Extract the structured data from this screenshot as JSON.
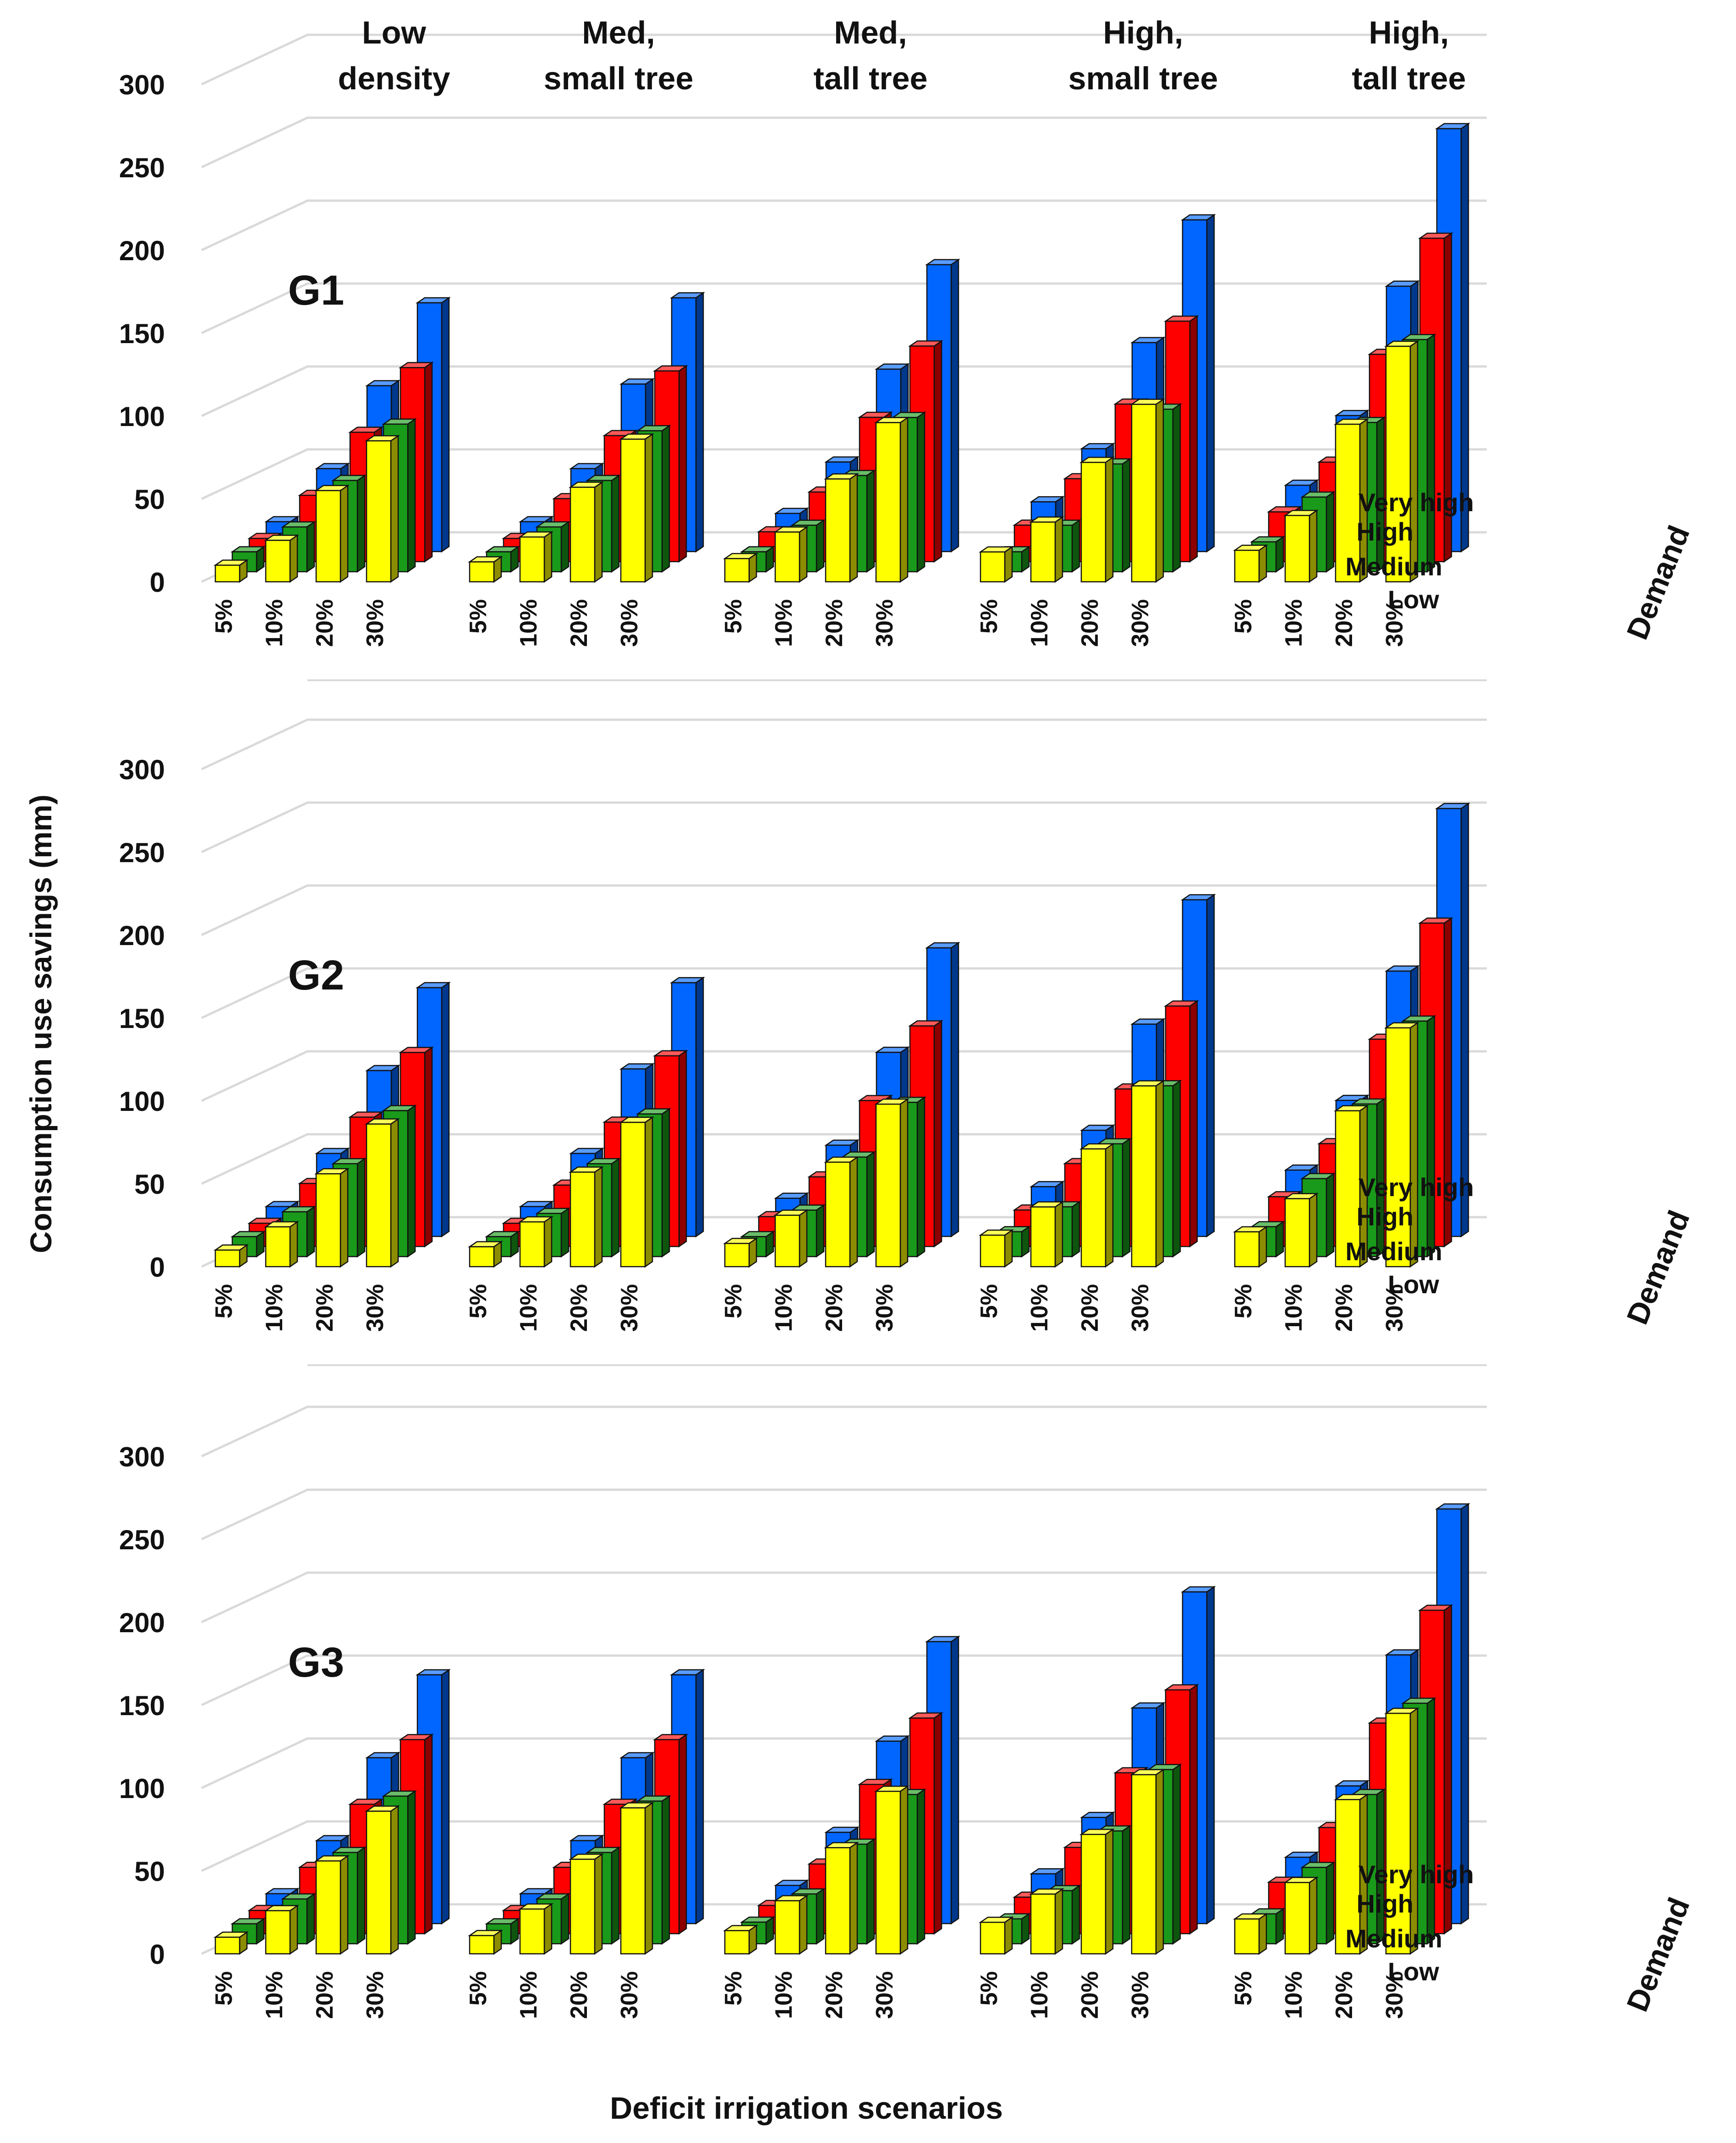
{
  "figure": {
    "ylabel": "Consumption use savings (mm)",
    "xlabel": "Deficit irrigation scenarios",
    "depth_axis_title": "Demand"
  },
  "colors": {
    "Low": "#ffff00",
    "Medium": "#1a9a1a",
    "High": "#ff0000",
    "Very high": "#0066ff",
    "grid": "#d9d9d9",
    "edge": "#111111"
  },
  "chart_data": {
    "type": "bar",
    "style": "3d-clustered",
    "ylim": [
      0,
      300
    ],
    "yticks": [
      0,
      50,
      100,
      150,
      200,
      250,
      300
    ],
    "scenarios": [
      "5%",
      "10%",
      "20%",
      "30%"
    ],
    "demand_levels": [
      "Low",
      "Medium",
      "High",
      "Very high"
    ],
    "densities": [
      {
        "line1": "Low",
        "line2": "density"
      },
      {
        "line1": "Med,",
        "line2": "small tree"
      },
      {
        "line1": "Med,",
        "line2": "tall tree"
      },
      {
        "line1": "High,",
        "line2": "small tree"
      },
      {
        "line1": "High,",
        "line2": "tall tree"
      }
    ],
    "note": "values[density][demand][scenario] in mm; demand order Low, Medium, High, Very high; scenario order 5%, 10%, 20%, 30%",
    "panels": [
      {
        "name": "G1",
        "values": [
          [
            [
              10,
              25,
              55,
              85
            ],
            [
              12,
              27,
              55,
              89
            ],
            [
              14,
              40,
              78,
              117
            ],
            [
              18,
              50,
              100,
              150
            ]
          ],
          [
            [
              12,
              27,
              57,
              86
            ],
            [
              12,
              27,
              55,
              85
            ],
            [
              14,
              38,
              76,
              115
            ],
            [
              18,
              50,
              101,
              153
            ]
          ],
          [
            [
              14,
              30,
              62,
              96
            ],
            [
              12,
              28,
              58,
              93
            ],
            [
              18,
              42,
              87,
              130
            ],
            [
              23,
              54,
              110,
              173
            ]
          ],
          [
            [
              18,
              36,
              72,
              107
            ],
            [
              12,
              28,
              65,
              98
            ],
            [
              22,
              50,
              95,
              145
            ],
            [
              30,
              62,
              126,
              200
            ]
          ],
          [
            [
              19,
              40,
              95,
              142
            ],
            [
              18,
              45,
              90,
              140
            ],
            [
              30,
              60,
              125,
              195
            ],
            [
              40,
              82,
              160,
              255
            ]
          ]
        ]
      },
      {
        "name": "G2",
        "values": [
          [
            [
              10,
              24,
              56,
              86
            ],
            [
              12,
              27,
              56,
              88
            ],
            [
              14,
              38,
              78,
              117
            ],
            [
              18,
              50,
              100,
              150
            ]
          ],
          [
            [
              12,
              27,
              57,
              87
            ],
            [
              12,
              26,
              56,
              86
            ],
            [
              14,
              37,
              75,
              115
            ],
            [
              18,
              50,
              101,
              153
            ]
          ],
          [
            [
              14,
              31,
              63,
              98
            ],
            [
              12,
              28,
              60,
              93
            ],
            [
              18,
              42,
              88,
              133
            ],
            [
              23,
              55,
              111,
              174
            ]
          ],
          [
            [
              19,
              36,
              71,
              109
            ],
            [
              15,
              30,
              68,
              103
            ],
            [
              22,
              50,
              95,
              145
            ],
            [
              30,
              64,
              128,
              203
            ]
          ],
          [
            [
              21,
              41,
              94,
              144
            ],
            [
              18,
              47,
              92,
              142
            ],
            [
              30,
              62,
              125,
              195
            ],
            [
              40,
              82,
              160,
              258
            ]
          ]
        ]
      },
      {
        "name": "G3",
        "values": [
          [
            [
              10,
              26,
              56,
              86
            ],
            [
              12,
              27,
              55,
              89
            ],
            [
              14,
              40,
              78,
              117
            ],
            [
              18,
              50,
              100,
              150
            ]
          ],
          [
            [
              11,
              27,
              57,
              88
            ],
            [
              12,
              27,
              55,
              86
            ],
            [
              14,
              40,
              78,
              117
            ],
            [
              18,
              50,
              100,
              150
            ]
          ],
          [
            [
              14,
              32,
              64,
              98
            ],
            [
              13,
              30,
              60,
              90
            ],
            [
              17,
              42,
              90,
              130
            ],
            [
              23,
              55,
              110,
              170
            ]
          ],
          [
            [
              19,
              36,
              72,
              108
            ],
            [
              15,
              32,
              68,
              105
            ],
            [
              22,
              52,
              97,
              147
            ],
            [
              30,
              64,
              130,
              200
            ]
          ],
          [
            [
              21,
              43,
              93,
              145
            ],
            [
              18,
              46,
              90,
              145
            ],
            [
              31,
              64,
              127,
              195
            ],
            [
              40,
              83,
              162,
              250
            ]
          ]
        ]
      }
    ]
  }
}
